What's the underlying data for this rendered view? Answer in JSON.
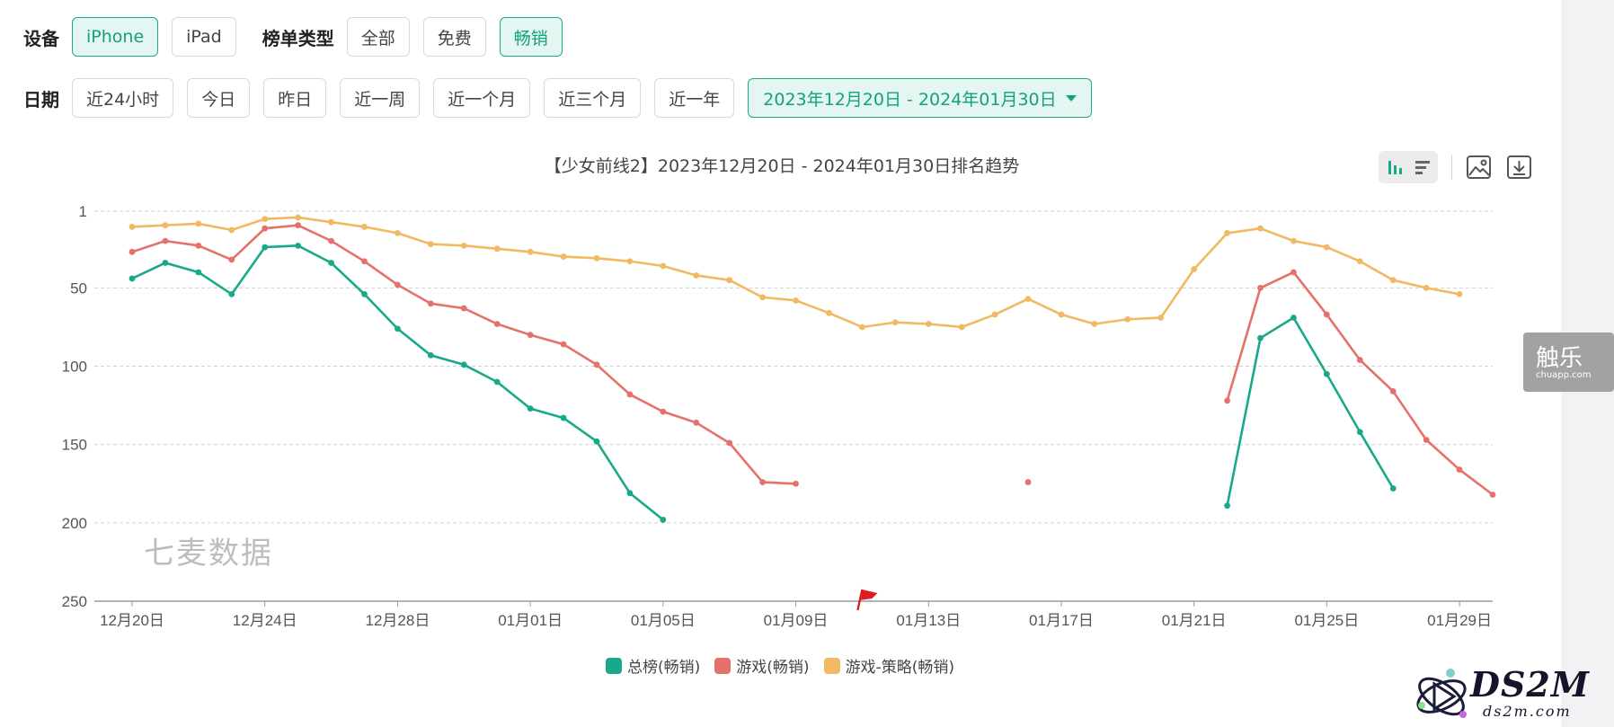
{
  "filters": {
    "device": {
      "label": "设备",
      "options": [
        "iPhone",
        "iPad"
      ],
      "selected": "iPhone"
    },
    "list_type": {
      "label": "榜单类型",
      "options": [
        "全部",
        "免费",
        "畅销"
      ],
      "selected": "畅销"
    },
    "date": {
      "label": "日期",
      "options": [
        "近24小时",
        "今日",
        "昨日",
        "近一周",
        "近一个月",
        "近三个月",
        "近一年"
      ],
      "range_label": "2023年12月20日 - 2024年01月30日"
    }
  },
  "toolbar": {
    "bar_icon": "bar-chart-icon",
    "list_icon": "list-icon",
    "image_icon": "image-icon",
    "download_icon": "download-icon"
  },
  "watermark": "七麦数据",
  "side_badge": {
    "title": "触乐",
    "subtitle": "chuapp.com"
  },
  "logo": {
    "text": "DS2M",
    "subtext": "ds2m.com"
  },
  "chart_data": {
    "type": "line",
    "title": "【少女前线2】2023年12月20日 - 2024年01月30日排名趋势",
    "x_start": "2023-12-20",
    "x_ticks": [
      "12月20日",
      "12月24日",
      "12月28日",
      "01月01日",
      "01月05日",
      "01月09日",
      "01月13日",
      "01月17日",
      "01月21日",
      "01月25日",
      "01月29日"
    ],
    "y_ticks": [
      "1",
      "50",
      "100",
      "150",
      "200",
      "250"
    ],
    "ylim": [
      1,
      250
    ],
    "y_inverted": true,
    "grid": true,
    "legend_position": "bottom",
    "marker_date": "2024-01-11",
    "series": [
      {
        "name": "总榜(畅销)",
        "color": "#18a98a",
        "values": [
          44,
          34,
          40,
          54,
          24,
          23,
          34,
          54,
          76,
          93,
          99,
          110,
          127,
          133,
          148,
          181,
          198,
          null,
          null,
          null,
          null,
          null,
          null,
          null,
          null,
          null,
          null,
          null,
          null,
          null,
          null,
          null,
          null,
          189,
          82,
          69,
          105,
          142,
          178,
          null,
          null,
          null
        ]
      },
      {
        "name": "游戏(畅销)",
        "color": "#e5716a",
        "values": [
          27,
          20,
          23,
          32,
          12,
          10,
          20,
          33,
          48,
          60,
          63,
          73,
          80,
          86,
          99,
          118,
          129,
          136,
          149,
          174,
          175,
          null,
          null,
          null,
          null,
          null,
          null,
          174,
          null,
          null,
          null,
          null,
          null,
          122,
          50,
          40,
          67,
          96,
          116,
          147,
          166,
          182
        ]
      },
      {
        "name": "游戏-策略(畅销)",
        "color": "#f0b962",
        "values": [
          11,
          10,
          9,
          13,
          6,
          5,
          8,
          11,
          15,
          22,
          23,
          25,
          27,
          30,
          31,
          33,
          36,
          42,
          45,
          56,
          58,
          66,
          75,
          72,
          73,
          75,
          67,
          57,
          67,
          73,
          70,
          69,
          38,
          15,
          12,
          20,
          24,
          33,
          45,
          50,
          54,
          null
        ]
      }
    ]
  }
}
